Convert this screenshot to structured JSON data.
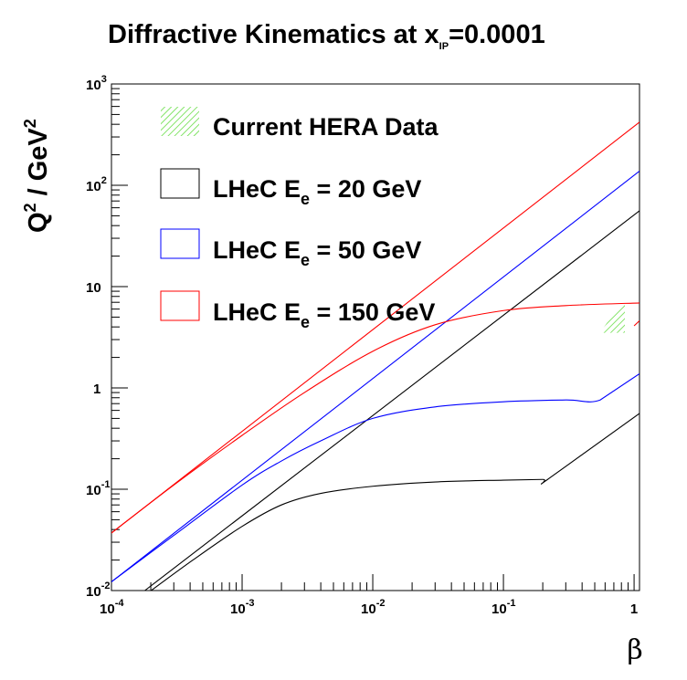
{
  "chart_data": {
    "type": "line",
    "title": "Diffractive Kinematics at x",
    "title_subscript": "IP",
    "title_suffix": "=0.0001",
    "xlabel": "β",
    "ylabel": "Q",
    "ylabel_sup": "2",
    "ylabel_mid": " / GeV",
    "ylabel_sup2": "2",
    "x_scale": "log",
    "y_scale": "log",
    "xlim": [
      0.0001,
      1.1
    ],
    "ylim": [
      0.01,
      1000
    ],
    "grid": false,
    "legend_position": "top-left",
    "x_ticks": [
      {
        "value": 0.0001,
        "base": "10",
        "exp": "-4"
      },
      {
        "value": 0.001,
        "base": "10",
        "exp": "-3"
      },
      {
        "value": 0.01,
        "base": "10",
        "exp": "-2"
      },
      {
        "value": 0.1,
        "base": "10",
        "exp": "-1"
      },
      {
        "value": 1,
        "base": "1",
        "exp": ""
      }
    ],
    "y_ticks": [
      {
        "value": 0.01,
        "base": "10",
        "exp": "-2"
      },
      {
        "value": 0.1,
        "base": "10",
        "exp": "-1"
      },
      {
        "value": 1,
        "base": "1",
        "exp": ""
      },
      {
        "value": 10,
        "base": "10",
        "exp": ""
      },
      {
        "value": 100,
        "base": "10",
        "exp": "2"
      },
      {
        "value": 1000,
        "base": "10",
        "exp": "3"
      }
    ],
    "series": [
      {
        "name": "LHeC E",
        "sub": "e",
        "suffix": " = 20 GeV",
        "color": "#000000",
        "kinematic_limit": [
          {
            "beta": 0.00018,
            "Q2": 0.01
          },
          {
            "beta": 1.1,
            "Q2": 56
          }
        ],
        "low_limit": [
          {
            "beta": 0.00018,
            "Q2": 0.009
          },
          {
            "beta": 0.00042,
            "Q2": 0.02
          },
          {
            "beta": 0.001,
            "Q2": 0.043
          },
          {
            "beta": 0.002,
            "Q2": 0.07
          },
          {
            "beta": 0.004,
            "Q2": 0.091
          },
          {
            "beta": 0.01,
            "Q2": 0.107
          },
          {
            "beta": 0.03,
            "Q2": 0.118
          },
          {
            "beta": 0.1,
            "Q2": 0.123
          },
          {
            "beta": 0.2,
            "Q2": 0.125
          },
          {
            "beta": 0.22,
            "Q2": 0.126
          },
          {
            "beta": 1.1,
            "Q2": 0.56
          }
        ]
      },
      {
        "name": "LHeC E",
        "sub": "e",
        "suffix": " = 50 GeV",
        "color": "#0000ff",
        "kinematic_limit": [
          {
            "beta": 0.0001,
            "Q2": 0.0122
          },
          {
            "beta": 1.1,
            "Q2": 138
          }
        ],
        "low_limit": [
          {
            "beta": 0.0001,
            "Q2": 0.0122
          },
          {
            "beta": 0.0003,
            "Q2": 0.035
          },
          {
            "beta": 0.001,
            "Q2": 0.11
          },
          {
            "beta": 0.002,
            "Q2": 0.19
          },
          {
            "beta": 0.004,
            "Q2": 0.3
          },
          {
            "beta": 0.01,
            "Q2": 0.5
          },
          {
            "beta": 0.03,
            "Q2": 0.65
          },
          {
            "beta": 0.1,
            "Q2": 0.73
          },
          {
            "beta": 0.3,
            "Q2": 0.76
          },
          {
            "beta": 0.55,
            "Q2": 0.76
          },
          {
            "beta": 1.1,
            "Q2": 1.38
          }
        ]
      },
      {
        "name": "LHeC E",
        "sub": "e",
        "suffix": " = 150 GeV",
        "color": "#ff0000",
        "kinematic_limit": [
          {
            "beta": 0.0001,
            "Q2": 0.037
          },
          {
            "beta": 1.1,
            "Q2": 420
          }
        ],
        "low_limit": [
          {
            "beta": 0.0001,
            "Q2": 0.037
          },
          {
            "beta": 0.0003,
            "Q2": 0.11
          },
          {
            "beta": 0.001,
            "Q2": 0.34
          },
          {
            "beta": 0.003,
            "Q2": 0.9
          },
          {
            "beta": 0.01,
            "Q2": 2.3
          },
          {
            "beta": 0.03,
            "Q2": 4.2
          },
          {
            "beta": 0.1,
            "Q2": 5.8
          },
          {
            "beta": 0.3,
            "Q2": 6.5
          },
          {
            "beta": 1.1,
            "Q2": 6.9
          }
        ],
        "extra": [
          {
            "beta": 1.0,
            "Q2": 4.1
          },
          {
            "beta": 1.1,
            "Q2": 4.6
          }
        ]
      }
    ],
    "hera_region": {
      "name": "Current HERA Data",
      "color": "#66dd44",
      "polygon": [
        {
          "beta": 0.55,
          "Q2": 3.5
        },
        {
          "beta": 0.85,
          "Q2": 3.5
        },
        {
          "beta": 0.85,
          "Q2": 7.0
        },
        {
          "beta": 0.65,
          "Q2": 4.8
        }
      ]
    }
  }
}
